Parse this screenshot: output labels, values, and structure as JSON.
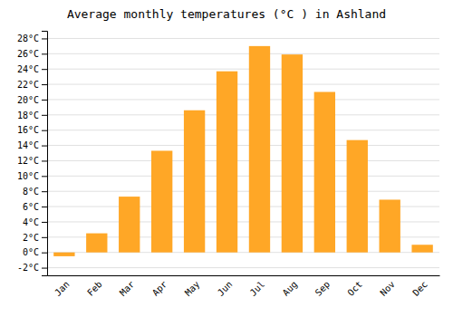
{
  "chart_data": {
    "type": "bar",
    "title": "Average monthly temperatures (°C ) in Ashland",
    "categories": [
      "Jan",
      "Feb",
      "Mar",
      "Apr",
      "May",
      "Jun",
      "Jul",
      "Aug",
      "Sep",
      "Oct",
      "Nov",
      "Dec"
    ],
    "values": [
      -0.5,
      2.5,
      7.3,
      13.3,
      18.6,
      23.7,
      27.0,
      25.9,
      21.0,
      14.7,
      6.9,
      1.0
    ],
    "color": "#FFA726",
    "ylim": [
      -3,
      29
    ],
    "yticks": [
      {
        "value": -2,
        "label": "-2°C"
      },
      {
        "value": 0,
        "label": "0°C"
      },
      {
        "value": 2,
        "label": "2°C"
      },
      {
        "value": 4,
        "label": "4°C"
      },
      {
        "value": 6,
        "label": "6°C"
      },
      {
        "value": 8,
        "label": "8°C"
      },
      {
        "value": 10,
        "label": "10°C"
      },
      {
        "value": 12,
        "label": "12°C"
      },
      {
        "value": 14,
        "label": "14°C"
      },
      {
        "value": 16,
        "label": "16°C"
      },
      {
        "value": 18,
        "label": "18°C"
      },
      {
        "value": 20,
        "label": "20°C"
      },
      {
        "value": 22,
        "label": "22°C"
      },
      {
        "value": 24,
        "label": "24°C"
      },
      {
        "value": 26,
        "label": "26°C"
      },
      {
        "value": 28,
        "label": "28°C"
      }
    ],
    "grid": true
  }
}
